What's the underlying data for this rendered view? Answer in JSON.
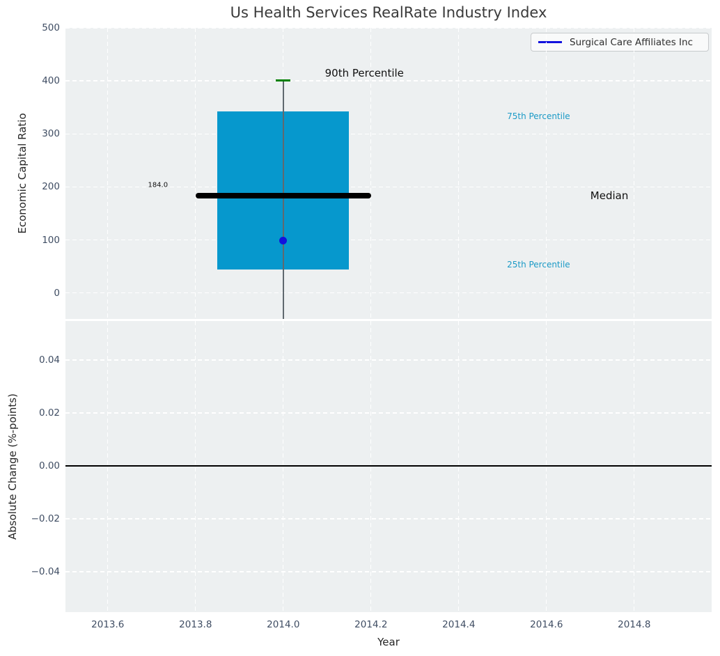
{
  "title": "Us Health Services RealRate Industry Index",
  "legend": {
    "label": "Surgical Care Affiliates Inc"
  },
  "colors": {
    "axes_bg": "#edf0f1",
    "grid": "#ffffff",
    "tick_label": "#3f4d63",
    "box_fill": "#0698cd",
    "median_line": "#000000",
    "whisker": "#60696f",
    "p90_cap": "#008000",
    "point": "#1212dd",
    "legend_line": "#1212dd",
    "zero_line": "#000000",
    "annotation_cyan": "#1b9ac6",
    "annotation_black": "#101010"
  },
  "chart_data": [
    {
      "type": "boxplot",
      "ylabel": "Economic Capital Ratio",
      "ylim": [
        -49,
        500
      ],
      "xlim": [
        2013.5035,
        2014.9765
      ],
      "yticks": [
        {
          "v": 0,
          "label": "0"
        },
        {
          "v": 100,
          "label": "100"
        },
        {
          "v": 200,
          "label": "200"
        },
        {
          "v": 300,
          "label": "300"
        },
        {
          "v": 400,
          "label": "400"
        },
        {
          "v": 500,
          "label": "500"
        }
      ],
      "grid": "white dashed, on",
      "box": {
        "x_center": 2014.0,
        "x_left": 2013.85,
        "x_right": 2014.15,
        "q25": 44,
        "median": 184.0,
        "q75": 342,
        "p90": 401,
        "whisker_low_clipped_below_axis": true,
        "median_x_left": 2013.8,
        "median_x_right": 2014.2,
        "median_value_label": "184.0"
      },
      "point": {
        "name": "Surgical Care Affiliates Inc",
        "x": 2014.0,
        "y": 99
      },
      "annotations": [
        {
          "text": "90th Percentile",
          "x": 2014.095,
          "y": 414,
          "size": 15,
          "color": "#101010",
          "align": "left"
        },
        {
          "text": "75th Percentile",
          "x": 2014.51,
          "y": 333,
          "size": 12,
          "color": "#1b9ac6",
          "align": "left"
        },
        {
          "text": "Median",
          "x": 2014.7,
          "y": 184,
          "size": 15,
          "color": "#101010",
          "align": "left"
        },
        {
          "text": "25th Percentile",
          "x": 2014.51,
          "y": 53,
          "size": 12,
          "color": "#1b9ac6",
          "align": "left"
        },
        {
          "text": "184.0",
          "x": 2013.737,
          "y": 203,
          "size": 10,
          "color": "#101010",
          "align": "right"
        }
      ]
    },
    {
      "type": "line",
      "ylabel": "Absolute Change (%-points)",
      "xlabel": "Year",
      "ylim": [
        -0.0553,
        0.0547
      ],
      "xlim": [
        2013.5035,
        2014.9765
      ],
      "yticks": [
        {
          "v": 0.04,
          "label": "0.04"
        },
        {
          "v": 0.02,
          "label": "0.02"
        },
        {
          "v": 0.0,
          "label": "0.00"
        },
        {
          "v": -0.02,
          "label": "−0.02"
        },
        {
          "v": -0.04,
          "label": "−0.04"
        }
      ],
      "xticks": [
        {
          "v": 2013.6,
          "label": "2013.6"
        },
        {
          "v": 2013.8,
          "label": "2013.8"
        },
        {
          "v": 2014.0,
          "label": "2014.0"
        },
        {
          "v": 2014.2,
          "label": "2014.2"
        },
        {
          "v": 2014.4,
          "label": "2014.4"
        },
        {
          "v": 2014.6,
          "label": "2014.6"
        },
        {
          "v": 2014.8,
          "label": "2014.8"
        }
      ],
      "zero_line": 0.0,
      "grid": "white dashed, on"
    }
  ]
}
